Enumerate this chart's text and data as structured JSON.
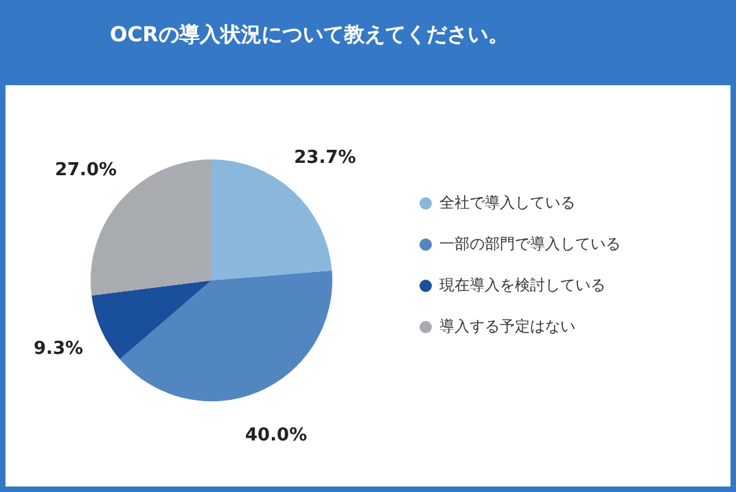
{
  "chart_data": {
    "type": "pie",
    "title": "OCRの導入状況について教えてください。",
    "categories": [
      "全社で導入している",
      "一部の部門で導入している",
      "現在導入を検討している",
      "導入する予定はない"
    ],
    "values": [
      23.7,
      40.0,
      9.3,
      27.0
    ],
    "value_labels": [
      "23.7%",
      "40.0%",
      "9.3%",
      "27.0%"
    ],
    "colors": [
      "#8ab8dc",
      "#5286c0",
      "#1a4f9c",
      "#a8abb0"
    ],
    "legend": "right"
  }
}
